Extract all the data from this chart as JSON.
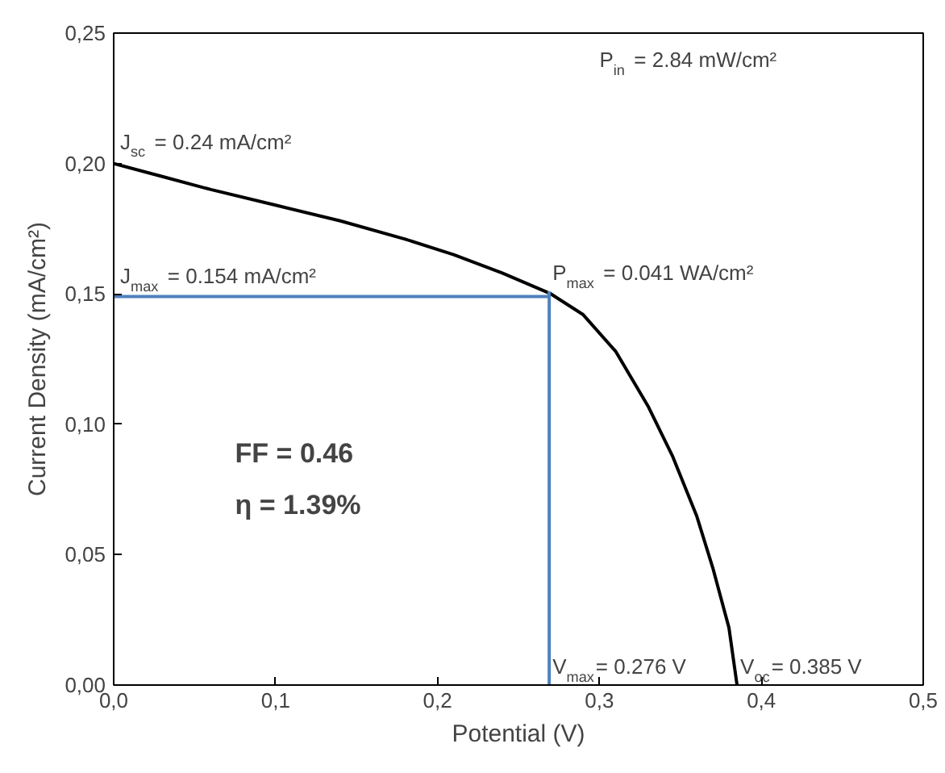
{
  "chart_data": {
    "type": "line",
    "xlabel": "Potential (V)",
    "ylabel": "Current Density (mA/cm²)",
    "xlim": [
      0,
      0.5
    ],
    "ylim": [
      0,
      0.25
    ],
    "xticks": [
      {
        "value": 0,
        "label": "0,0"
      },
      {
        "value": 0.1,
        "label": "0,1"
      },
      {
        "value": 0.2,
        "label": "0,2"
      },
      {
        "value": 0.3,
        "label": "0,3"
      },
      {
        "value": 0.4,
        "label": "0,4"
      },
      {
        "value": 0.5,
        "label": "0,5"
      }
    ],
    "yticks": [
      {
        "value": 0,
        "label": "0,00"
      },
      {
        "value": 0.05,
        "label": "0,05"
      },
      {
        "value": 0.1,
        "label": "0,10"
      },
      {
        "value": 0.15,
        "label": "0,15"
      },
      {
        "value": 0.2,
        "label": "0,20"
      },
      {
        "value": 0.25,
        "label": "0,25"
      }
    ],
    "grid": false,
    "marker": "none",
    "line_style": "solid",
    "series": [
      {
        "color": "#000000",
        "x": [
          0,
          0.03,
          0.06,
          0.1,
          0.14,
          0.18,
          0.21,
          0.24,
          0.27,
          0.29,
          0.31,
          0.33,
          0.345,
          0.36,
          0.37,
          0.38,
          0.385
        ],
        "values": [
          0.2,
          0.195,
          0.19,
          0.184,
          0.178,
          0.171,
          0.165,
          0.158,
          0.15,
          0.142,
          0.128,
          0.107,
          0.088,
          0.065,
          0.045,
          0.022,
          0
        ]
      },
      {
        "color": "#4f81bd",
        "x": [
          0,
          0.269
        ],
        "values": [
          0.149,
          0.149
        ]
      },
      {
        "color": "#4f81bd",
        "x": [
          0.269,
          0.269
        ],
        "values": [
          0,
          0.151
        ]
      }
    ],
    "annotations": [
      {
        "text": "J$_{sc}$ = 0.24 mA/cm²",
        "x": 0,
        "y": 0.2
      },
      {
        "text": "J$_{max}$ = 0.154 mA/cm²",
        "x": 0,
        "y": 0.149
      },
      {
        "text": "P$_{max}$ = 0.041 WA/cm²",
        "x": 0.269,
        "y": 0.151
      },
      {
        "text": "V$_{max}$= 0.276 V",
        "x": 0.269,
        "y": 0
      },
      {
        "text": "V$_{oc}$= 0.385 V",
        "x": 0.385,
        "y": 0
      },
      "P$_{in}$ = 2.84 mW/cm²",
      "FF = 0.46",
      "η = 1.39%"
    ]
  }
}
